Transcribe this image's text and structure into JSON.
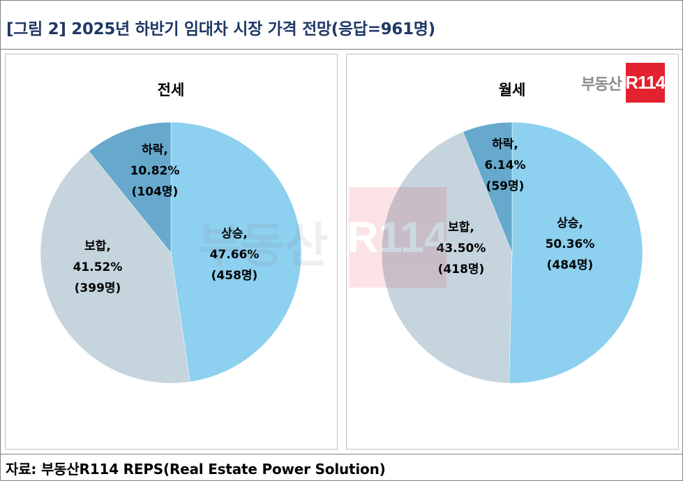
{
  "figure_title": "[그림 2] 2025년 하반기 임대차 시장 가격 전망(응답=961명)",
  "source": "자료: 부동산R114 REPS(Real Estate Power Solution)",
  "logo": {
    "text": "부동산",
    "box": "R114",
    "box_color": "#e3212f"
  },
  "watermark": {
    "text": "부동산",
    "box": "R114"
  },
  "chart_data": [
    {
      "type": "pie",
      "title": "전세",
      "slices": [
        {
          "label": "상승,",
          "percent_label": "47.66%",
          "count_label": "(458명)",
          "value": 47.66,
          "color": "#8dd0ef"
        },
        {
          "label": "보합,",
          "percent_label": "41.52%",
          "count_label": "(399명)",
          "value": 41.52,
          "color": "#c5d4dd"
        },
        {
          "label": "하락,",
          "percent_label": "10.82%",
          "count_label": "(104명)",
          "value": 10.82,
          "color": "#66a9cd"
        }
      ]
    },
    {
      "type": "pie",
      "title": "월세",
      "slices": [
        {
          "label": "상승,",
          "percent_label": "50.36%",
          "count_label": "(484명)",
          "value": 50.36,
          "color": "#8dd0ef"
        },
        {
          "label": "보합,",
          "percent_label": "43.50%",
          "count_label": "(418명)",
          "value": 43.5,
          "color": "#c5d4dd"
        },
        {
          "label": "하락,",
          "percent_label": "6.14%",
          "count_label": "(59명)",
          "value": 6.14,
          "color": "#66a9cd"
        }
      ]
    }
  ]
}
